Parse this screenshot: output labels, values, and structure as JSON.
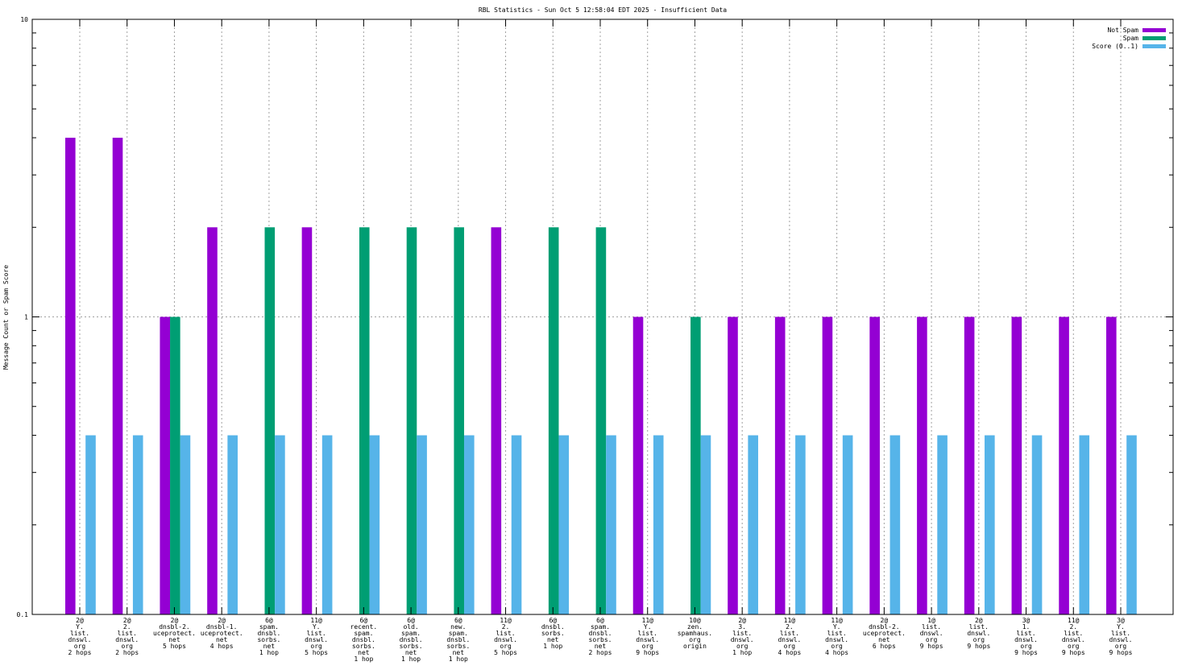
{
  "chart_data": {
    "type": "bar",
    "title": "RBL Statistics - Sun Oct  5 12:58:04 EDT 2025 - Insufficient Data",
    "ylabel": "Message Count or Spam Score",
    "xlabel": "",
    "yscale": "log",
    "ylim": [
      0.1,
      10
    ],
    "yticks": [
      "0.1",
      "1",
      "10"
    ],
    "grid": true,
    "legend_position": "top-right",
    "categories": [
      [
        "2@",
        "Y.",
        "list.",
        "dnswl.",
        "org",
        "2 hops"
      ],
      [
        "2@",
        "2.",
        "list.",
        "dnswl.",
        "org",
        "2 hops"
      ],
      [
        "2@",
        "dnsbl-2.",
        "uceprotect.",
        "net",
        "5 hops"
      ],
      [
        "2@",
        "dnsbl-1.",
        "uceprotect.",
        "net",
        "4 hops"
      ],
      [
        "6@",
        "spam.",
        "dnsbl.",
        "sorbs.",
        "net",
        "1 hop"
      ],
      [
        "11@",
        "Y.",
        "list.",
        "dnswl.",
        "org",
        "5 hops"
      ],
      [
        "6@",
        "recent.",
        "spam.",
        "dnsbl.",
        "sorbs.",
        "net",
        "1 hop"
      ],
      [
        "6@",
        "old.",
        "spam.",
        "dnsbl.",
        "sorbs.",
        "net",
        "1 hop"
      ],
      [
        "6@",
        "new.",
        "spam.",
        "dnsbl.",
        "sorbs.",
        "net",
        "1 hop"
      ],
      [
        "11@",
        "2.",
        "list.",
        "dnswl.",
        "org",
        "5 hops"
      ],
      [
        "6@",
        "dnsbl.",
        "sorbs.",
        "net",
        "1 hop"
      ],
      [
        "6@",
        "spam.",
        "dnsbl.",
        "sorbs.",
        "net",
        "2 hops"
      ],
      [
        "11@",
        "Y.",
        "list.",
        "dnswl.",
        "org",
        "9 hops"
      ],
      [
        "10@",
        "zen.",
        "spamhaus.",
        "org",
        "origin"
      ],
      [
        "2@",
        "3.",
        "list.",
        "dnswl.",
        "org",
        "1 hop"
      ],
      [
        "11@",
        "2.",
        "list.",
        "dnswl.",
        "org",
        "4 hops"
      ],
      [
        "11@",
        "Y.",
        "list.",
        "dnswl.",
        "org",
        "4 hops"
      ],
      [
        "2@",
        "dnsbl-2.",
        "uceprotect.",
        "net",
        "6 hops"
      ],
      [
        "1@",
        "list.",
        "dnswl.",
        "org",
        "9 hops"
      ],
      [
        "2@",
        "list.",
        "dnswl.",
        "org",
        "9 hops"
      ],
      [
        "3@",
        "1.",
        "list.",
        "dnswl.",
        "org",
        "9 hops"
      ],
      [
        "11@",
        "2.",
        "list.",
        "dnswl.",
        "org",
        "9 hops"
      ],
      [
        "3@",
        "Y.",
        "list.",
        "dnswl.",
        "org",
        "9 hops"
      ]
    ],
    "series": [
      {
        "name": "Not Spam",
        "color": "#9400d3",
        "values": [
          4,
          4,
          1,
          2,
          null,
          2,
          null,
          null,
          null,
          2,
          null,
          null,
          1,
          null,
          1,
          1,
          1,
          1,
          1,
          1,
          1,
          1,
          1
        ]
      },
      {
        "name": "Spam",
        "color": "#009e73",
        "values": [
          null,
          null,
          1,
          null,
          2,
          null,
          2,
          2,
          2,
          null,
          2,
          2,
          null,
          1,
          null,
          null,
          null,
          null,
          null,
          null,
          null,
          null,
          null
        ]
      },
      {
        "name": "Score (0..1)",
        "color": "#56b4e9",
        "values": [
          0.4,
          0.4,
          0.4,
          0.4,
          0.4,
          0.4,
          0.4,
          0.4,
          0.4,
          0.4,
          0.4,
          0.4,
          0.4,
          0.4,
          0.4,
          0.4,
          0.4,
          0.4,
          0.4,
          0.4,
          0.4,
          0.4,
          0.4
        ]
      }
    ]
  }
}
